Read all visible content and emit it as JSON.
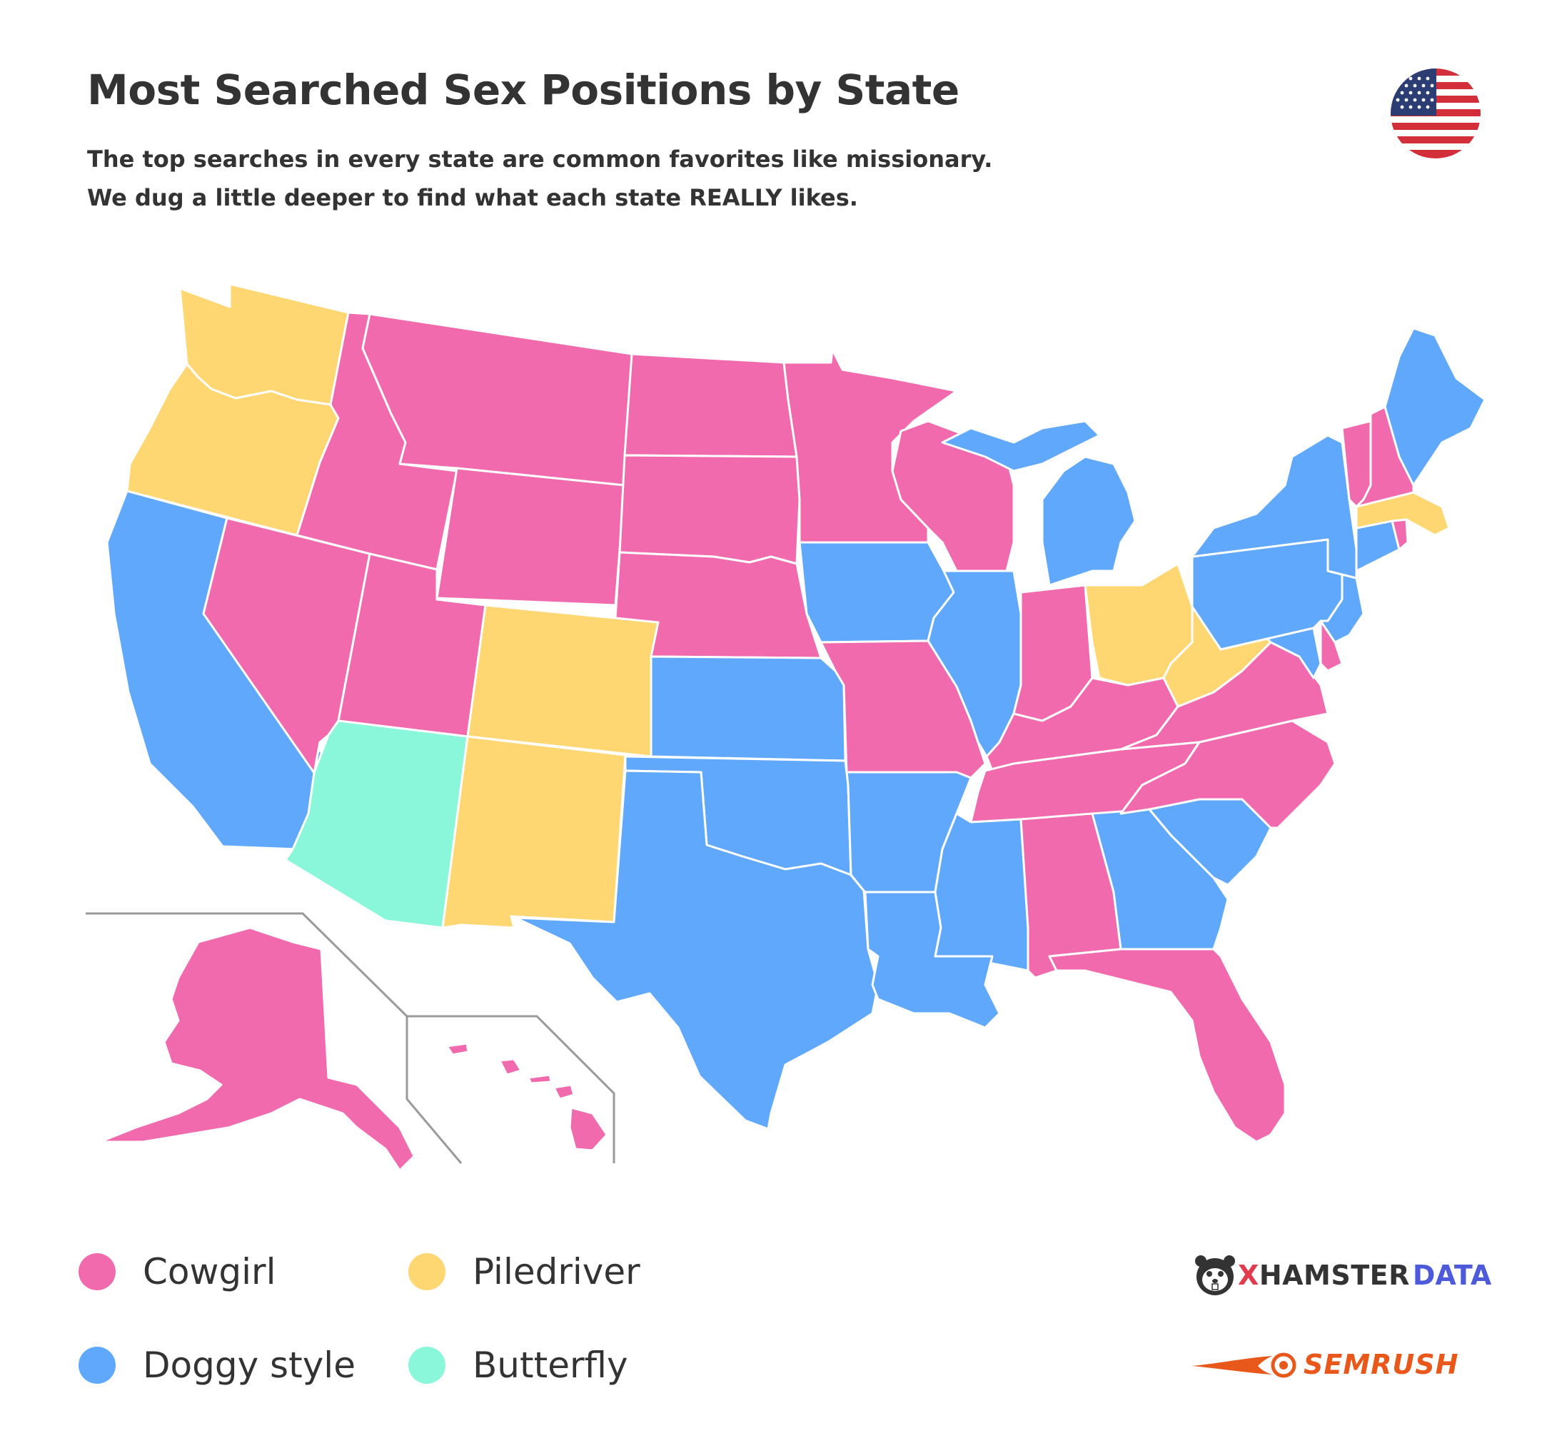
{
  "title": "Most Searched Sex Positions by State",
  "subtitle": {
    "line1": "The top searches in every state are common favorites like missionary.",
    "line2": "We dug a little deeper to find what each state REALLY likes."
  },
  "colors": {
    "cowgirl": "#f06aad",
    "piledriver": "#fed672",
    "doggy_style": "#5fa8fb",
    "butterfly": "#8af6da",
    "border": "#ffffff",
    "inset_line": "#9a9a9a"
  },
  "legend": [
    {
      "label": "Cowgirl",
      "color": "#f06aad"
    },
    {
      "label": "Piledriver",
      "color": "#fed672"
    },
    {
      "label": "Doggy style",
      "color": "#5fa8fb"
    },
    {
      "label": "Butterfly",
      "color": "#8af6da"
    }
  ],
  "states": {
    "WA": "Piledriver",
    "OR": "Piledriver",
    "CA": "Doggy style",
    "NV": "Cowgirl",
    "ID": "Cowgirl",
    "MT": "Cowgirl",
    "WY": "Cowgirl",
    "UT": "Cowgirl",
    "AZ": "Butterfly",
    "CO": "Piledriver",
    "NM": "Piledriver",
    "ND": "Cowgirl",
    "SD": "Cowgirl",
    "NE": "Cowgirl",
    "KS": "Doggy style",
    "OK": "Doggy style",
    "TX": "Doggy style",
    "MN": "Cowgirl",
    "IA": "Doggy style",
    "MO": "Cowgirl",
    "AR": "Doggy style",
    "LA": "Doggy style",
    "WI": "Cowgirl",
    "IL": "Doggy style",
    "MI": "Doggy style",
    "IN": "Cowgirl",
    "OH": "Piledriver",
    "KY": "Cowgirl",
    "TN": "Cowgirl",
    "MS": "Doggy style",
    "AL": "Cowgirl",
    "GA": "Doggy style",
    "FL": "Cowgirl",
    "SC": "Doggy style",
    "NC": "Cowgirl",
    "VA": "Cowgirl",
    "WV": "Piledriver",
    "MD": "Doggy style",
    "DE": "Cowgirl",
    "NJ": "Doggy style",
    "PA": "Doggy style",
    "NY": "Doggy style",
    "CT": "Doggy style",
    "RI": "Cowgirl",
    "MA": "Piledriver",
    "VT": "Cowgirl",
    "NH": "Cowgirl",
    "ME": "Doggy style",
    "AK": "Cowgirl",
    "HI": "Cowgirl"
  },
  "logos": {
    "xhamster_a": "X",
    "xhamster_b": "HAMSTER",
    "xhamster_c": "DATA",
    "semrush": "SEMRUSH"
  }
}
